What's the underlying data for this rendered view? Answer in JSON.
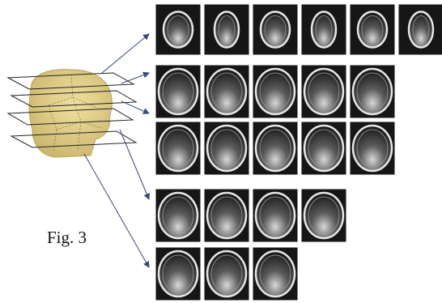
{
  "figure": {
    "caption": "Fig. 3"
  }
}
